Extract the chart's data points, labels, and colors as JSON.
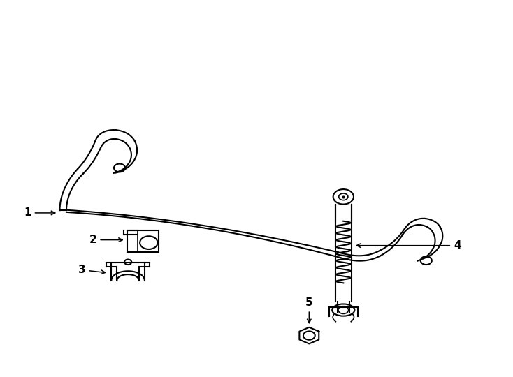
{
  "background_color": "#ffffff",
  "line_color": "#000000",
  "line_width": 1.5,
  "fig_width": 7.34,
  "fig_height": 5.4
}
